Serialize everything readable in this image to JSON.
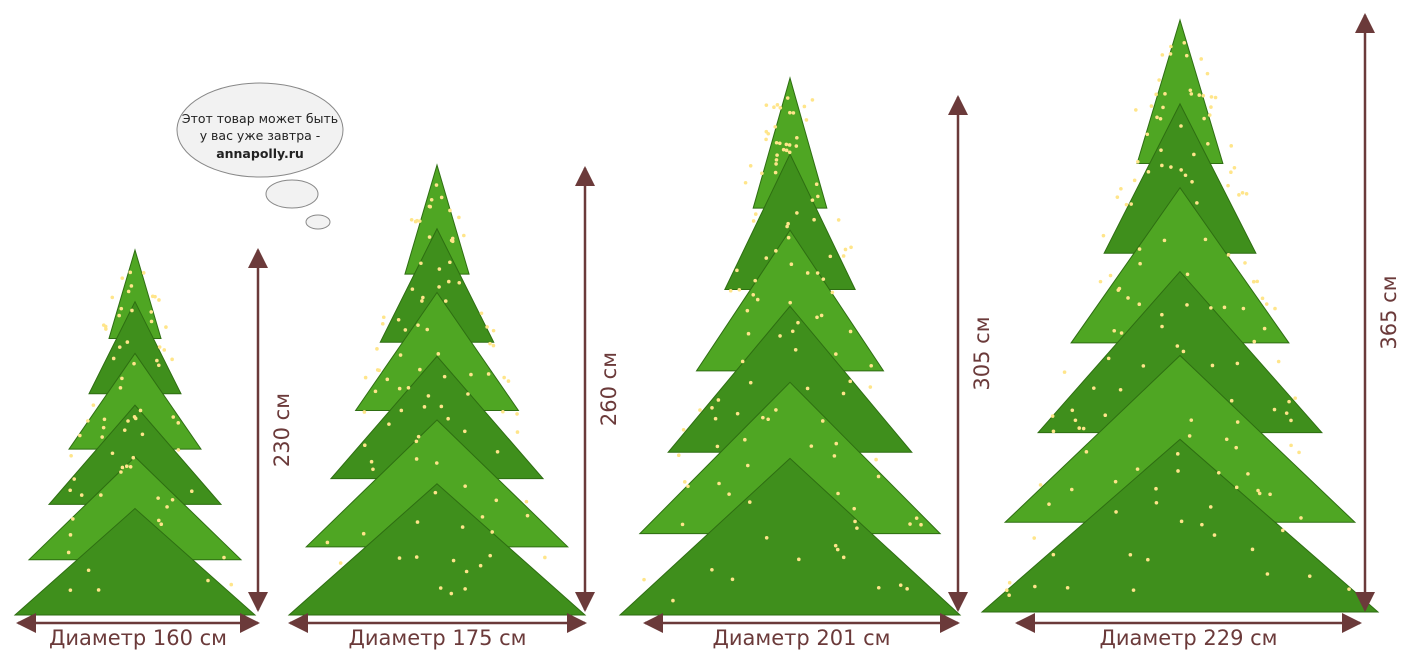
{
  "bubble": {
    "lines": [
      "Этот товар может быть",
      "у вас уже завтра -",
      "annapolly.ru"
    ]
  },
  "trees": [
    {
      "height": "230 см",
      "diameter": "Диаметр 160 см"
    },
    {
      "height": "260 см",
      "diameter": "Диаметр 175 см"
    },
    {
      "height": "305 см",
      "diameter": "Диаметр 201 см"
    },
    {
      "height": "365 см",
      "diameter": "Диаметр 229 см"
    }
  ]
}
